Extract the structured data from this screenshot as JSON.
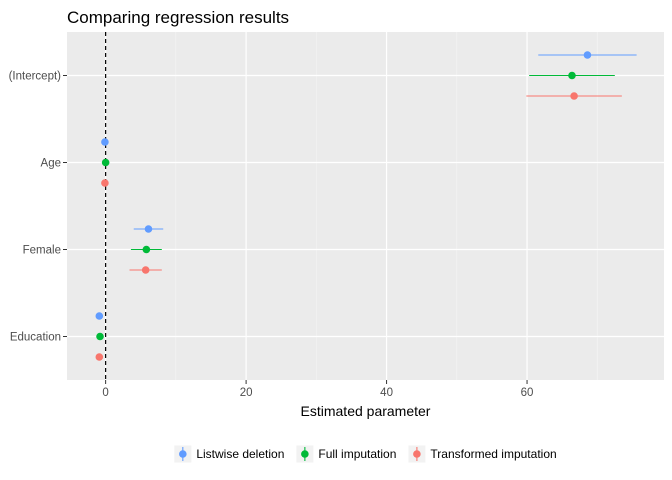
{
  "chart_data": {
    "type": "scatter",
    "title": "Comparing regression results",
    "xlabel": "Estimated parameter",
    "ylabel": "",
    "xlim": [
      -5.5,
      79.5
    ],
    "x_ticks": [
      0,
      20,
      40,
      60
    ],
    "categories": [
      "(Intercept)",
      "Age",
      "Female",
      "Education"
    ],
    "reference_line": {
      "x": 0,
      "style": "dashed"
    },
    "legend_position": "bottom",
    "grid": true,
    "series": [
      {
        "name": "Listwise deletion",
        "color": "#619CFF",
        "points": [
          {
            "category": "(Intercept)",
            "estimate": 68.6,
            "low": 61.6,
            "high": 75.6
          },
          {
            "category": "Age",
            "estimate": -0.1,
            "low": -0.3,
            "high": 0.1
          },
          {
            "category": "Female",
            "estimate": 6.1,
            "low": 4.0,
            "high": 8.2
          },
          {
            "category": "Education",
            "estimate": -0.9,
            "low": -1.2,
            "high": -0.6
          }
        ]
      },
      {
        "name": "Full imputation",
        "color": "#00BA38",
        "points": [
          {
            "category": "(Intercept)",
            "estimate": 66.4,
            "low": 60.3,
            "high": 72.5
          },
          {
            "category": "Age",
            "estimate": 0.0,
            "low": -0.2,
            "high": 0.2
          },
          {
            "category": "Female",
            "estimate": 5.8,
            "low": 3.6,
            "high": 8.0
          },
          {
            "category": "Education",
            "estimate": -0.8,
            "low": -1.1,
            "high": -0.5
          }
        ]
      },
      {
        "name": "Transformed imputation",
        "color": "#F8766D",
        "points": [
          {
            "category": "(Intercept)",
            "estimate": 66.7,
            "low": 59.9,
            "high": 73.5
          },
          {
            "category": "Age",
            "estimate": -0.1,
            "low": -0.3,
            "high": 0.1
          },
          {
            "category": "Female",
            "estimate": 5.7,
            "low": 3.4,
            "high": 8.0
          },
          {
            "category": "Education",
            "estimate": -0.9,
            "low": -1.2,
            "high": -0.6
          }
        ]
      }
    ]
  }
}
